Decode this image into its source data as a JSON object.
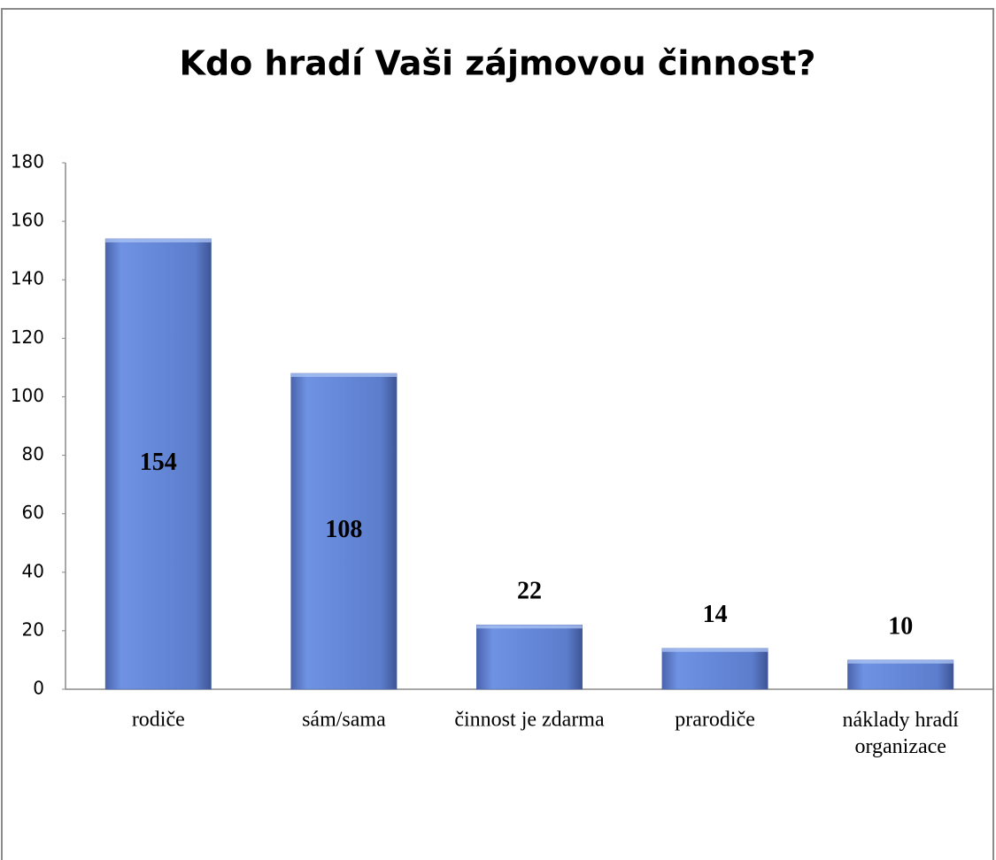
{
  "chart_data": {
    "type": "bar",
    "title": "Kdo hradí Vaši zájmovou činnost?",
    "categories": [
      "rodiče",
      "sám/sama",
      "činnost je zdarma",
      "prarodiče",
      "náklady hradí organizace"
    ],
    "values": [
      154,
      108,
      22,
      14,
      10
    ],
    "color": "#5b7fd4",
    "ylim": [
      0,
      180
    ],
    "yticks": [
      0,
      20,
      40,
      60,
      80,
      100,
      120,
      140,
      160,
      180
    ],
    "grid": false
  }
}
